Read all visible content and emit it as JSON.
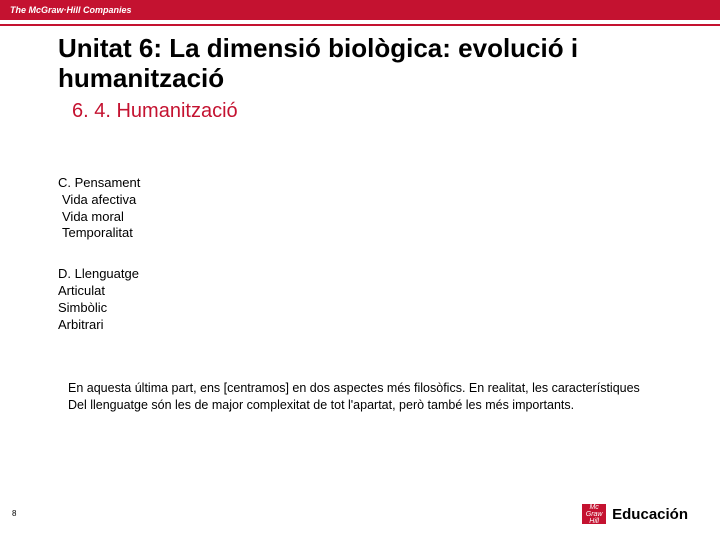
{
  "topbar": {
    "brand": "The McGraw·Hill Companies",
    "bg_color": "#c41230",
    "text_color": "#ffffff"
  },
  "title": "Unitat 6: La dimensió biològica: evolució i humanització",
  "subtitle": "6. 4. Humanització",
  "section_c": {
    "heading": "C. Pensament",
    "items": [
      "Vida afectiva",
      "Vida moral",
      "Temporalitat"
    ]
  },
  "section_d": {
    "heading": "D. Llenguatge",
    "items": [
      "Articulat",
      "Simbòlic",
      "Arbitrari"
    ]
  },
  "paragraph": {
    "line1": "En aquesta última part, ens [centramos] en dos aspectes més filosòfics. En realitat, les característiques",
    "line2": "Del llenguatge són les de major complexitat de tot l'apartat, però també les més importants."
  },
  "page_number": "8",
  "footer_logo": {
    "box_line1": "Mc",
    "box_line2": "Graw",
    "box_line3": "Hill",
    "text": "Educación",
    "box_color": "#c41230"
  }
}
